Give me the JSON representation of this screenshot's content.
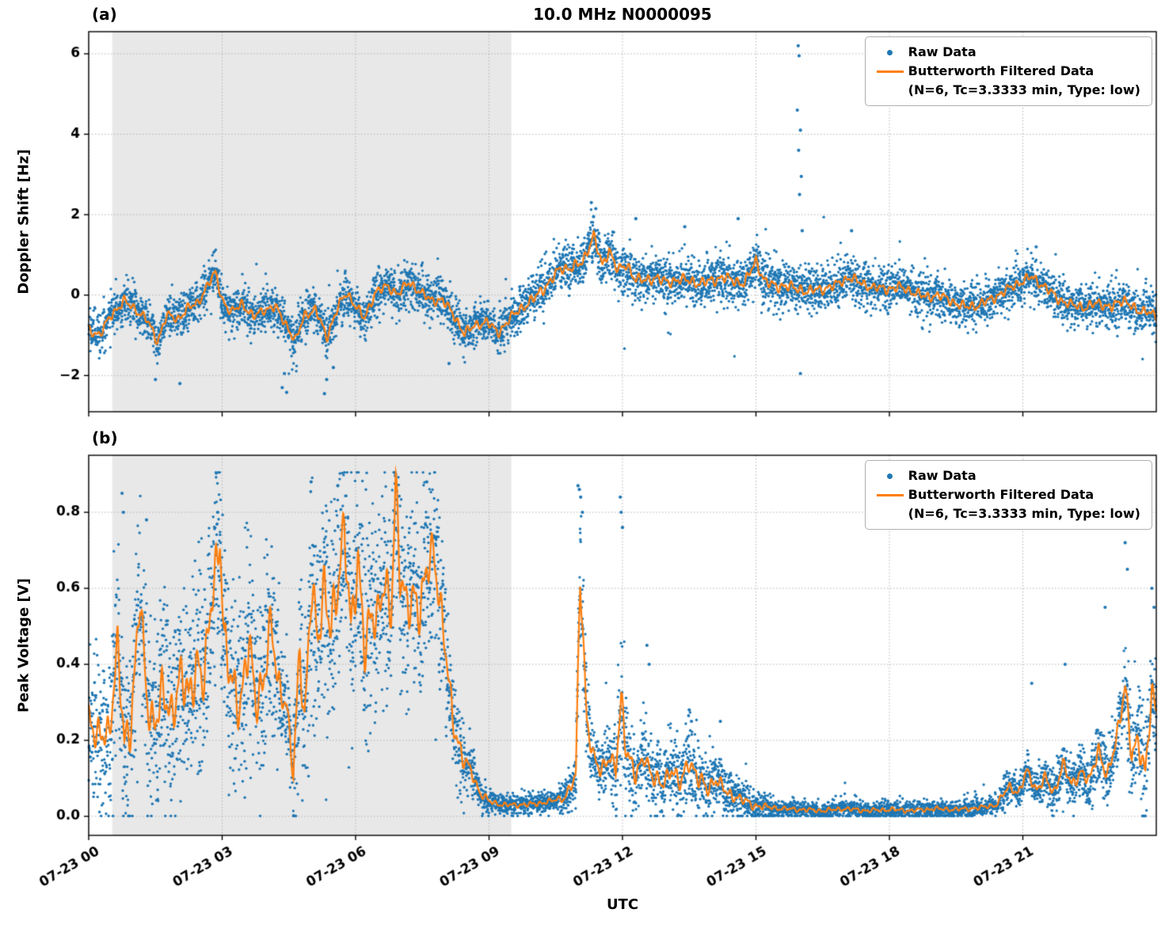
{
  "figure": {
    "title": "10.0 MHz N0000095",
    "panel_a_label": "(a)",
    "panel_b_label": "(b)",
    "xlabel": "UTC"
  },
  "legend": {
    "raw_label": "Raw Data",
    "filtered_label": "Butterworth Filtered Data",
    "filtered_sublabel": "(N=6, Tc=3.3333 min, Type: low)"
  },
  "chart_data": {
    "type": "scatter+line",
    "title": "10.0 MHz N0000095",
    "colors": {
      "raw": "#1f77b4",
      "filtered": "#ff7f0e",
      "shaded": "#e8e8e8",
      "grid": "#b3b3b3",
      "axis": "#000000"
    },
    "x": {
      "label": "UTC",
      "range_hours": [
        0,
        24
      ],
      "ticks": [
        0,
        3,
        6,
        9,
        12,
        15,
        18,
        21
      ],
      "tick_labels": [
        "07-23 00",
        "07-23 03",
        "07-23 06",
        "07-23 09",
        "07-23 12",
        "07-23 15",
        "07-23 18",
        "07-23 21"
      ]
    },
    "shaded_region_hours": [
      0.53,
      9.5
    ],
    "series": [
      {
        "name": "Raw Data",
        "type": "scatter",
        "color": "#1f77b4"
      },
      {
        "name": "Butterworth Filtered Data (N=6, Tc=3.3333 min, Type: low)",
        "type": "line",
        "color": "#ff7f0e"
      }
    ],
    "panels": [
      {
        "id": "a",
        "ylabel": "Doppler Shift [Hz]",
        "ylim": [
          -2.9,
          6.55
        ],
        "yticks": [
          -2,
          0,
          2,
          4,
          6
        ],
        "ytick_labels": [
          "−2",
          "0",
          "2",
          "4",
          "6"
        ],
        "raw_clip": [
          -2.55,
          2.35
        ],
        "wiggle_phases": [
          1.7,
          0.4,
          3.1
        ],
        "wiggle_scale": 0.5,
        "line_min": null,
        "filtered": {
          "t": [
            0.0,
            0.25,
            0.5,
            0.8,
            1.05,
            1.3,
            1.55,
            1.75,
            2.0,
            2.2,
            2.45,
            2.7,
            2.85,
            3.0,
            3.2,
            3.45,
            3.7,
            3.95,
            4.2,
            4.45,
            4.65,
            4.85,
            5.1,
            5.35,
            5.6,
            5.8,
            6.0,
            6.2,
            6.45,
            6.7,
            6.95,
            7.2,
            7.45,
            7.7,
            7.95,
            8.2,
            8.45,
            8.7,
            8.95,
            9.2,
            9.45,
            9.7,
            10.0,
            10.3,
            10.6,
            10.9,
            11.1,
            11.35,
            11.55,
            11.7,
            11.9,
            12.1,
            12.3,
            12.5,
            12.75,
            13.0,
            13.25,
            13.5,
            13.75,
            14.0,
            14.25,
            14.5,
            14.75,
            15.0,
            15.2,
            15.45,
            15.65,
            15.9,
            16.2,
            16.5,
            16.8,
            17.1,
            17.35,
            17.6,
            17.9,
            18.2,
            18.5,
            18.8,
            19.1,
            19.4,
            19.7,
            20.0,
            20.3,
            20.6,
            20.9,
            21.2,
            21.5,
            21.8,
            22.1,
            22.4,
            22.7,
            23.0,
            23.3,
            23.6,
            23.8,
            24.0
          ],
          "v": [
            -0.85,
            -1.0,
            -0.5,
            -0.15,
            -0.35,
            -0.6,
            -1.15,
            -0.5,
            -0.6,
            -0.35,
            -0.2,
            0.3,
            0.55,
            -0.1,
            -0.45,
            -0.2,
            -0.55,
            -0.35,
            -0.3,
            -0.75,
            -1.15,
            -0.5,
            -0.35,
            -1.05,
            -0.3,
            0.05,
            -0.25,
            -0.6,
            0.1,
            0.2,
            0.05,
            0.3,
            0.1,
            -0.15,
            -0.1,
            -0.5,
            -0.95,
            -0.75,
            -0.65,
            -0.95,
            -0.6,
            -0.35,
            -0.1,
            0.25,
            0.65,
            0.7,
            0.8,
            1.5,
            0.7,
            1.15,
            0.6,
            0.75,
            0.4,
            0.35,
            0.45,
            0.3,
            0.4,
            0.35,
            0.3,
            0.35,
            0.45,
            0.35,
            0.3,
            0.85,
            0.35,
            0.2,
            0.25,
            0.15,
            0.1,
            0.15,
            0.25,
            0.45,
            0.3,
            0.2,
            0.15,
            0.2,
            0.1,
            -0.05,
            0.0,
            -0.15,
            -0.3,
            -0.25,
            -0.1,
            0.1,
            0.3,
            0.45,
            0.2,
            -0.1,
            -0.25,
            -0.3,
            -0.2,
            -0.3,
            -0.1,
            -0.45,
            -0.35,
            -0.55
          ]
        },
        "noise_sigma": {
          "t": [
            0,
            9.5,
            10,
            16,
            16.5,
            24
          ],
          "s": [
            0.26,
            0.26,
            0.3,
            0.3,
            0.27,
            0.27
          ]
        },
        "outliers": {
          "t": [
            1.5,
            2.05,
            4.35,
            4.4,
            4.45,
            5.3,
            5.35,
            5.5,
            8.1,
            11.3,
            11.4,
            11.35,
            15.95,
            15.97,
            15.93,
            16.0,
            15.96,
            16.02,
            15.98,
            16.04,
            16.0,
            12.3,
            13.4,
            14.6,
            17.15,
            21.3
          ],
          "v": [
            -2.1,
            -2.2,
            -2.3,
            -1.95,
            -2.42,
            -2.45,
            -2.1,
            -1.8,
            -1.7,
            2.3,
            2.15,
            1.95,
            6.2,
            5.95,
            4.6,
            4.1,
            3.6,
            2.95,
            2.5,
            1.6,
            -1.95,
            1.9,
            1.7,
            1.9,
            1.6,
            1.2
          ]
        }
      },
      {
        "id": "b",
        "ylabel": "Peak Voltage [V]",
        "ylim": [
          -0.05,
          0.95
        ],
        "yticks": [
          0,
          0.2,
          0.4,
          0.6,
          0.8
        ],
        "ytick_labels": [
          "0.0",
          "0.2",
          "0.4",
          "0.6",
          "0.8"
        ],
        "raw_clip": [
          0.001,
          0.905
        ],
        "wiggle_phases": [
          0.9,
          2.2,
          4.4
        ],
        "wiggle_scale": 0.55,
        "line_min": 0.008,
        "filtered": {
          "t": [
            0.0,
            0.2,
            0.45,
            0.65,
            0.8,
            0.95,
            1.15,
            1.3,
            1.45,
            1.65,
            1.85,
            2.05,
            2.25,
            2.45,
            2.6,
            2.75,
            2.95,
            3.05,
            3.2,
            3.4,
            3.6,
            3.75,
            3.9,
            4.1,
            4.25,
            4.45,
            4.6,
            4.75,
            4.85,
            5.0,
            5.15,
            5.3,
            5.45,
            5.6,
            5.75,
            5.9,
            6.05,
            6.2,
            6.35,
            6.5,
            6.65,
            6.8,
            6.9,
            7.0,
            7.15,
            7.3,
            7.45,
            7.6,
            7.75,
            7.9,
            8.05,
            8.2,
            8.4,
            8.6,
            8.8,
            9.0,
            9.3,
            9.6,
            10.0,
            10.4,
            10.7,
            10.95,
            11.05,
            11.2,
            11.35,
            11.5,
            11.7,
            11.85,
            11.97,
            12.1,
            12.3,
            12.5,
            12.7,
            12.9,
            13.1,
            13.3,
            13.5,
            13.7,
            13.9,
            14.1,
            14.35,
            14.6,
            14.9,
            15.2,
            15.6,
            16.0,
            16.5,
            17.0,
            17.5,
            18.0,
            18.5,
            19.0,
            19.5,
            20.0,
            20.4,
            20.7,
            20.9,
            21.1,
            21.3,
            21.5,
            21.7,
            21.9,
            22.1,
            22.3,
            22.5,
            22.7,
            22.9,
            23.1,
            23.3,
            23.45,
            23.6,
            23.75,
            23.9,
            24.0
          ],
          "v": [
            0.27,
            0.2,
            0.22,
            0.45,
            0.18,
            0.25,
            0.58,
            0.3,
            0.25,
            0.32,
            0.26,
            0.38,
            0.3,
            0.42,
            0.35,
            0.55,
            0.75,
            0.45,
            0.35,
            0.3,
            0.45,
            0.3,
            0.35,
            0.5,
            0.35,
            0.3,
            0.1,
            0.45,
            0.25,
            0.6,
            0.45,
            0.62,
            0.5,
            0.58,
            0.78,
            0.5,
            0.65,
            0.45,
            0.55,
            0.5,
            0.62,
            0.55,
            0.88,
            0.62,
            0.55,
            0.6,
            0.52,
            0.65,
            0.72,
            0.55,
            0.4,
            0.25,
            0.15,
            0.12,
            0.06,
            0.04,
            0.03,
            0.03,
            0.032,
            0.04,
            0.05,
            0.1,
            0.65,
            0.25,
            0.15,
            0.12,
            0.16,
            0.12,
            0.3,
            0.18,
            0.1,
            0.16,
            0.1,
            0.08,
            0.13,
            0.08,
            0.15,
            0.1,
            0.07,
            0.1,
            0.06,
            0.05,
            0.03,
            0.025,
            0.02,
            0.018,
            0.015,
            0.02,
            0.015,
            0.018,
            0.015,
            0.02,
            0.018,
            0.022,
            0.03,
            0.08,
            0.06,
            0.12,
            0.07,
            0.1,
            0.06,
            0.14,
            0.08,
            0.12,
            0.09,
            0.18,
            0.1,
            0.2,
            0.35,
            0.15,
            0.2,
            0.12,
            0.32,
            0.27
          ]
        },
        "noise_sigma": {
          "t": [
            0,
            0.5,
            1,
            2,
            3,
            4,
            4.55,
            4.7,
            5,
            6,
            7,
            7.8,
            8.2,
            8.7,
            9.2,
            10.5,
            10.9,
            11.05,
            11.4,
            11.8,
            11.97,
            12.3,
            13,
            13.6,
            14.2,
            14.8,
            15.5,
            20.3,
            20.8,
            21.5,
            22.5,
            23.2,
            23.7,
            24
          ],
          "s": [
            0.09,
            0.11,
            0.12,
            0.13,
            0.14,
            0.13,
            0.05,
            0.12,
            0.14,
            0.15,
            0.13,
            0.12,
            0.07,
            0.025,
            0.013,
            0.014,
            0.035,
            0.09,
            0.04,
            0.045,
            0.1,
            0.05,
            0.045,
            0.055,
            0.035,
            0.025,
            0.012,
            0.012,
            0.022,
            0.03,
            0.035,
            0.05,
            0.08,
            0.06
          ]
        },
        "outliers": {
          "t": [
            11.0,
            11.03,
            11.06,
            11.1,
            11.95,
            11.97,
            12.0,
            12.55,
            12.6,
            13.5,
            13.55,
            14.2,
            22.85,
            23.3,
            23.35,
            23.9,
            23.95,
            21.2,
            21.95,
            0.75,
            0.78,
            1.3,
            2.9,
            5.0,
            5.6,
            6.9,
            7.6
          ],
          "v": [
            0.87,
            0.86,
            0.84,
            0.8,
            0.84,
            0.8,
            0.76,
            0.45,
            0.4,
            0.28,
            0.25,
            0.25,
            0.55,
            0.72,
            0.65,
            0.6,
            0.55,
            0.35,
            0.4,
            0.85,
            0.8,
            0.78,
            0.8,
            0.88,
            0.87,
            0.9,
            0.88
          ]
        }
      }
    ]
  }
}
